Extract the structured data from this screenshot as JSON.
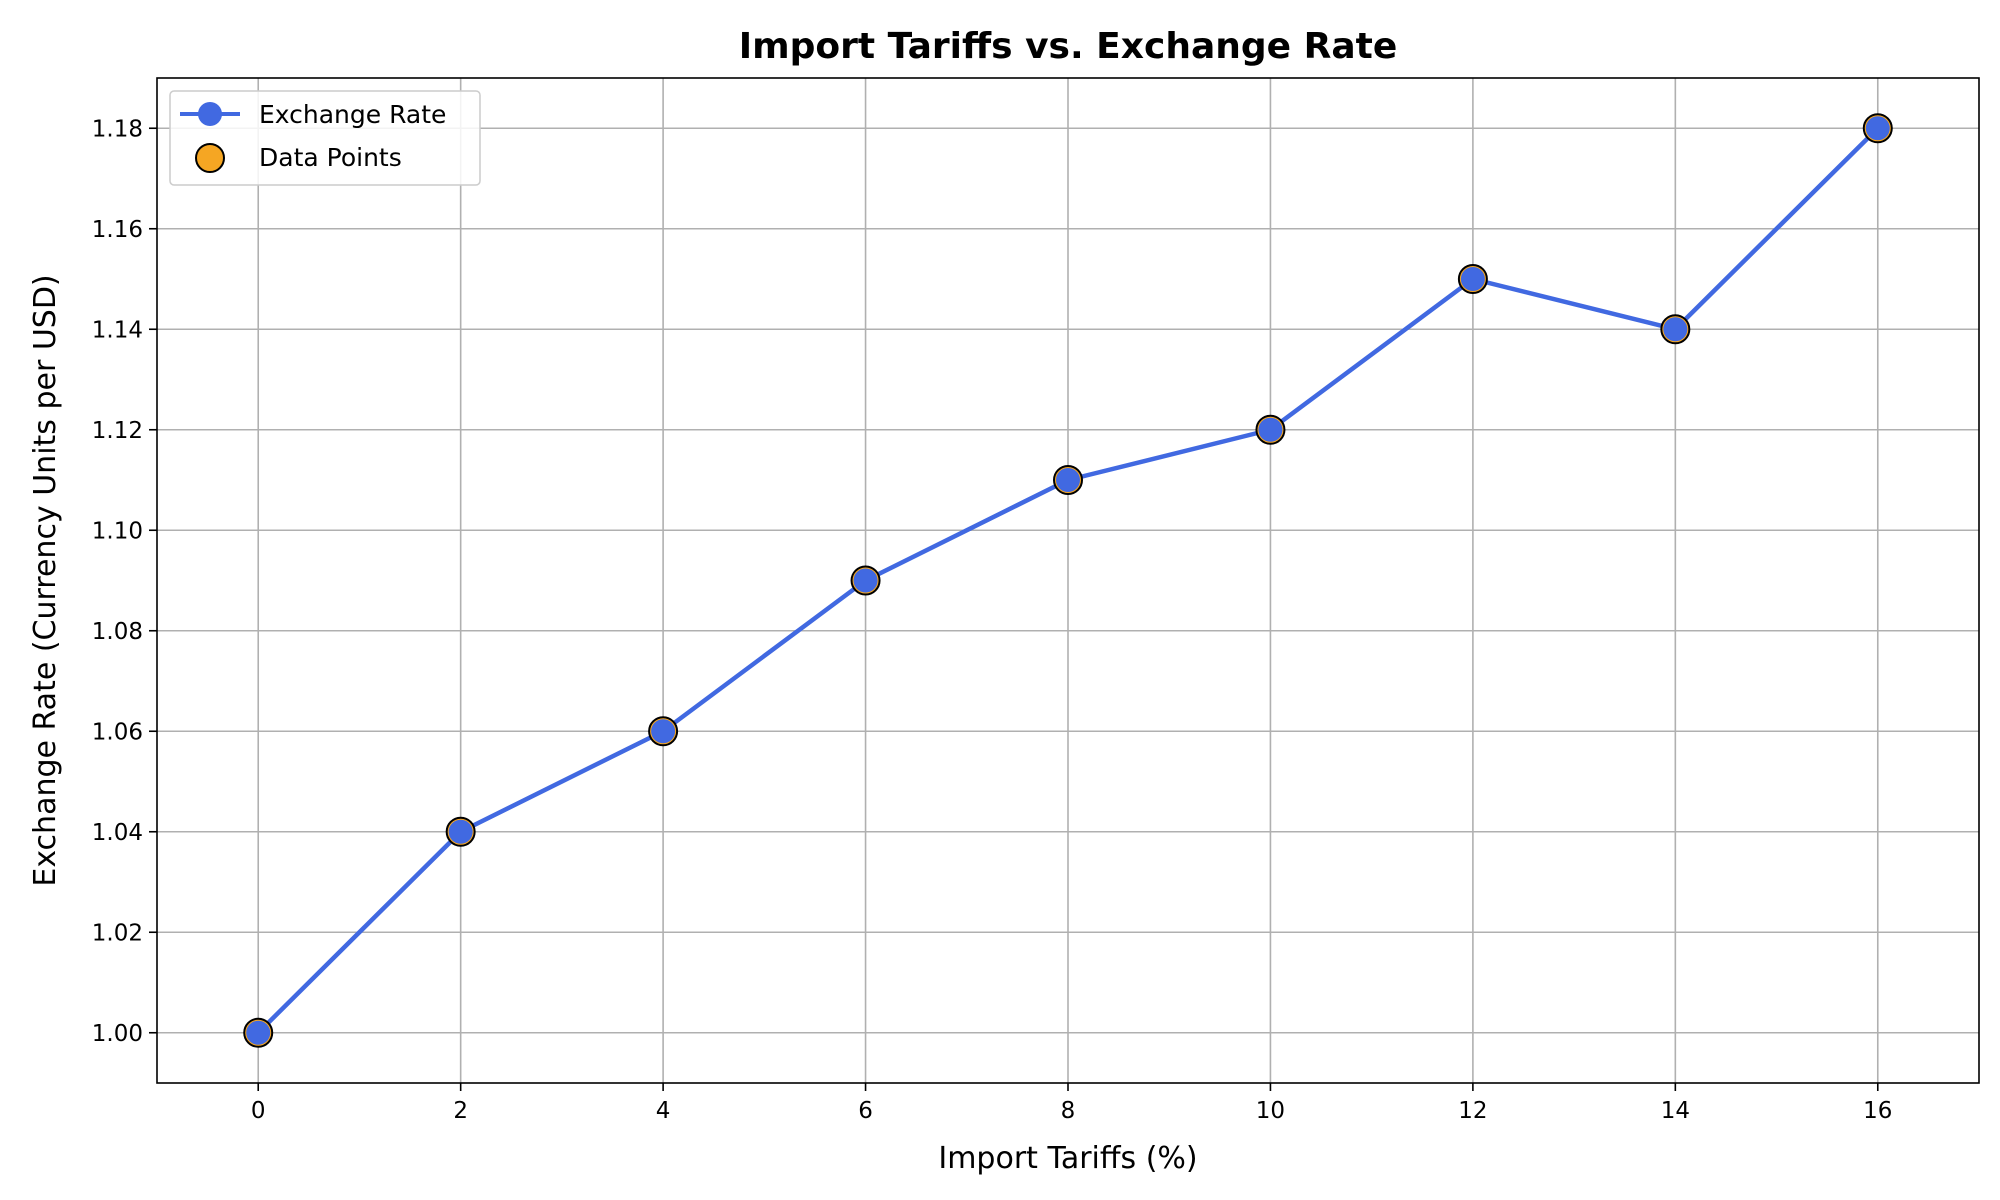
{
  "chart_data": {
    "type": "line",
    "title": "Import Tariffs vs. Exchange Rate",
    "xlabel": "Import Tariffs (%)",
    "ylabel": "Exchange Rate (Currency Units per USD)",
    "xlim": [
      -1,
      17
    ],
    "ylim": [
      0.99,
      1.19
    ],
    "xticks": [
      0,
      2,
      4,
      6,
      8,
      10,
      12,
      14,
      16
    ],
    "yticks": [
      1.0,
      1.02,
      1.04,
      1.06,
      1.08,
      1.1,
      1.12,
      1.14,
      1.16,
      1.18
    ],
    "grid": true,
    "legend_position": "top-left",
    "x": [
      0,
      2,
      4,
      6,
      8,
      10,
      12,
      14,
      16
    ],
    "series": [
      {
        "name": "Exchange Rate",
        "kind": "line",
        "color": "#4169e1",
        "values": [
          1.0,
          1.04,
          1.06,
          1.09,
          1.11,
          1.12,
          1.15,
          1.14,
          1.18
        ]
      },
      {
        "name": "Data Points",
        "kind": "scatter",
        "color": "#f5a623",
        "values": [
          1.0,
          1.04,
          1.06,
          1.09,
          1.11,
          1.12,
          1.15,
          1.14,
          1.18
        ]
      }
    ]
  }
}
